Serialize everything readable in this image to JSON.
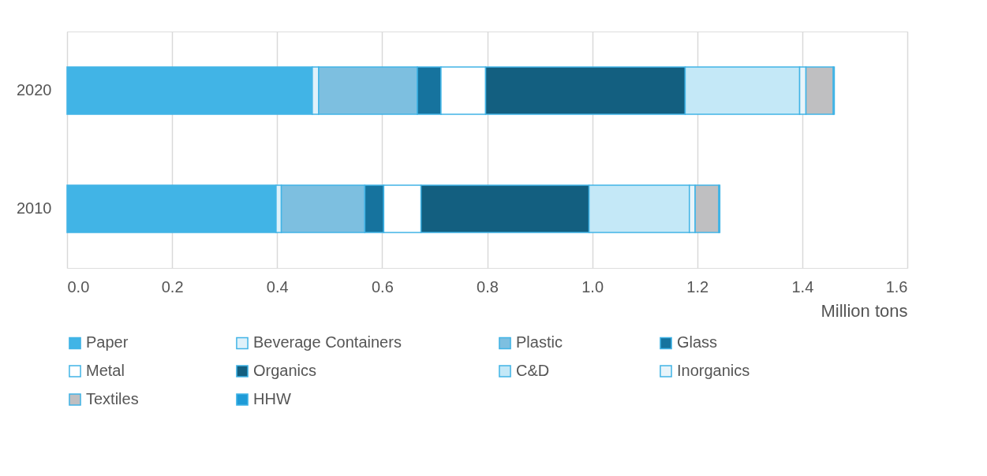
{
  "chart_data": {
    "type": "bar",
    "orientation": "horizontal",
    "stacked": true,
    "categories": [
      "2020",
      "2010"
    ],
    "xlabel": "Million tons",
    "xlim": [
      0,
      1.6
    ],
    "xticks": [
      {
        "value": 0,
        "label": "0.0"
      },
      0.2,
      0.4,
      0.6,
      0.8,
      {
        "value": 1,
        "label": "1.0"
      },
      1.2,
      1.4,
      1.6
    ],
    "grid": "x",
    "legend": "bottom",
    "series": [
      {
        "name": "Paper",
        "color": "#41b4e6",
        "values": [
          0.467,
          0.398
        ]
      },
      {
        "name": "Beverage Containers",
        "color": "#dff1fa",
        "values": [
          0.012,
          0.01
        ]
      },
      {
        "name": "Plastic",
        "color": "#7dbfe0",
        "values": [
          0.188,
          0.159
        ]
      },
      {
        "name": "Glass",
        "color": "#16739e",
        "values": [
          0.045,
          0.036
        ]
      },
      {
        "name": "Metal",
        "color": "#ffffff",
        "values": [
          0.085,
          0.071
        ]
      },
      {
        "name": "Organics",
        "color": "#135f80",
        "values": [
          0.38,
          0.32
        ]
      },
      {
        "name": "C&D",
        "color": "#c4e8f7",
        "values": [
          0.218,
          0.191
        ]
      },
      {
        "name": "Inorganics",
        "color": "#e8f4fa",
        "values": [
          0.012,
          0.011
        ]
      },
      {
        "name": "Textiles",
        "color": "#bfbfc1",
        "values": [
          0.052,
          0.045
        ]
      },
      {
        "name": "HHW",
        "color": "#1e9bd7",
        "values": [
          0.002,
          0.002
        ]
      }
    ]
  }
}
